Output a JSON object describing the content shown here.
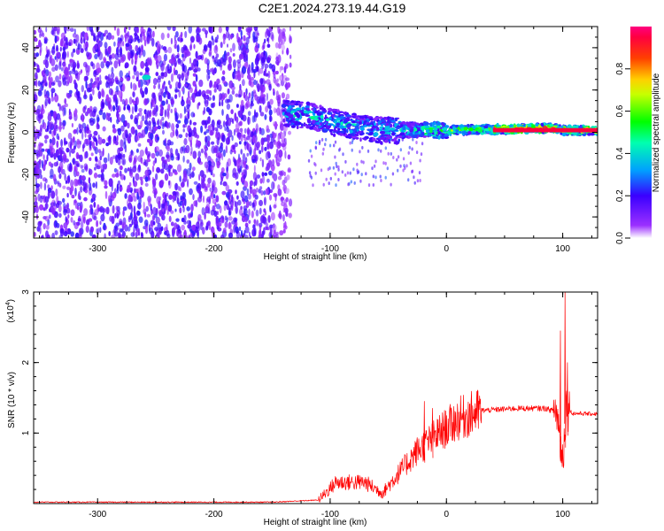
{
  "title": "C2E1.2024.273.19.44.G19",
  "chart_data": [
    {
      "type": "heatmap",
      "xlabel": "Height of straight line (km)",
      "ylabel": "Frequency (Hz)",
      "xlim": [
        -355,
        130
      ],
      "ylim": [
        -50,
        50
      ],
      "x_ticks": [
        -300,
        -200,
        -100,
        0,
        100
      ],
      "y_ticks": [
        -40,
        -20,
        0,
        20,
        40
      ],
      "colorbar": {
        "label": "Normalized spectral amplitude",
        "range": [
          0,
          1
        ],
        "ticks": [
          "0.0",
          "0.2",
          "0.4",
          "0.6",
          "0.8"
        ],
        "colormap": "rainbow"
      },
      "noise_region_x": [
        -355,
        -140
      ],
      "signal_track": [
        {
          "x": -140,
          "y": 9
        },
        {
          "x": -120,
          "y": 8
        },
        {
          "x": -100,
          "y": 5
        },
        {
          "x": -80,
          "y": 3
        },
        {
          "x": -60,
          "y": 1
        },
        {
          "x": -40,
          "y": 1
        },
        {
          "x": -20,
          "y": 1
        },
        {
          "x": 0,
          "y": 1
        },
        {
          "x": 50,
          "y": 1.5
        },
        {
          "x": 90,
          "y": 2
        },
        {
          "x": 100,
          "y": 1
        },
        {
          "x": 130,
          "y": 1
        }
      ],
      "strong_band_x": [
        40,
        130
      ],
      "isolated_blob": {
        "x": -258,
        "y": 26
      }
    },
    {
      "type": "line",
      "xlabel": "Height of straight line (km)",
      "ylabel": "SNR (10 * v/v)",
      "y_multiplier": "(x10",
      "y_multiplier_exp": "4",
      "y_multiplier_close": ")",
      "xlim": [
        -355,
        130
      ],
      "ylim": [
        0,
        3
      ],
      "x_ticks": [
        -300,
        -200,
        -100,
        0,
        100
      ],
      "y_ticks": [
        1,
        2,
        3
      ],
      "series": [
        {
          "color": "#ff0000",
          "envelope": [
            {
              "x": -355,
              "y": 0.02
            },
            {
              "x": -150,
              "y": 0.02
            },
            {
              "x": -110,
              "y": 0.05
            },
            {
              "x": -95,
              "y": 0.3
            },
            {
              "x": -70,
              "y": 0.3
            },
            {
              "x": -55,
              "y": 0.15
            },
            {
              "x": -40,
              "y": 0.45
            },
            {
              "x": -25,
              "y": 0.75
            },
            {
              "x": -10,
              "y": 0.95
            },
            {
              "x": 10,
              "y": 1.2
            },
            {
              "x": 30,
              "y": 1.32
            },
            {
              "x": 60,
              "y": 1.35
            },
            {
              "x": 85,
              "y": 1.35
            },
            {
              "x": 95,
              "y": 1.3
            },
            {
              "x": 100,
              "y": 0.6
            },
            {
              "x": 103,
              "y": 1.4
            },
            {
              "x": 108,
              "y": 1.28
            },
            {
              "x": 130,
              "y": 1.27
            }
          ],
          "peaks": [
            {
              "x": -19,
              "y": 1.45
            },
            {
              "x": -12,
              "y": 1.35
            },
            {
              "x": 98,
              "y": 2.45
            },
            {
              "x": 102,
              "y": 3.0
            },
            {
              "x": 104,
              "y": 2.0
            }
          ]
        }
      ]
    }
  ]
}
